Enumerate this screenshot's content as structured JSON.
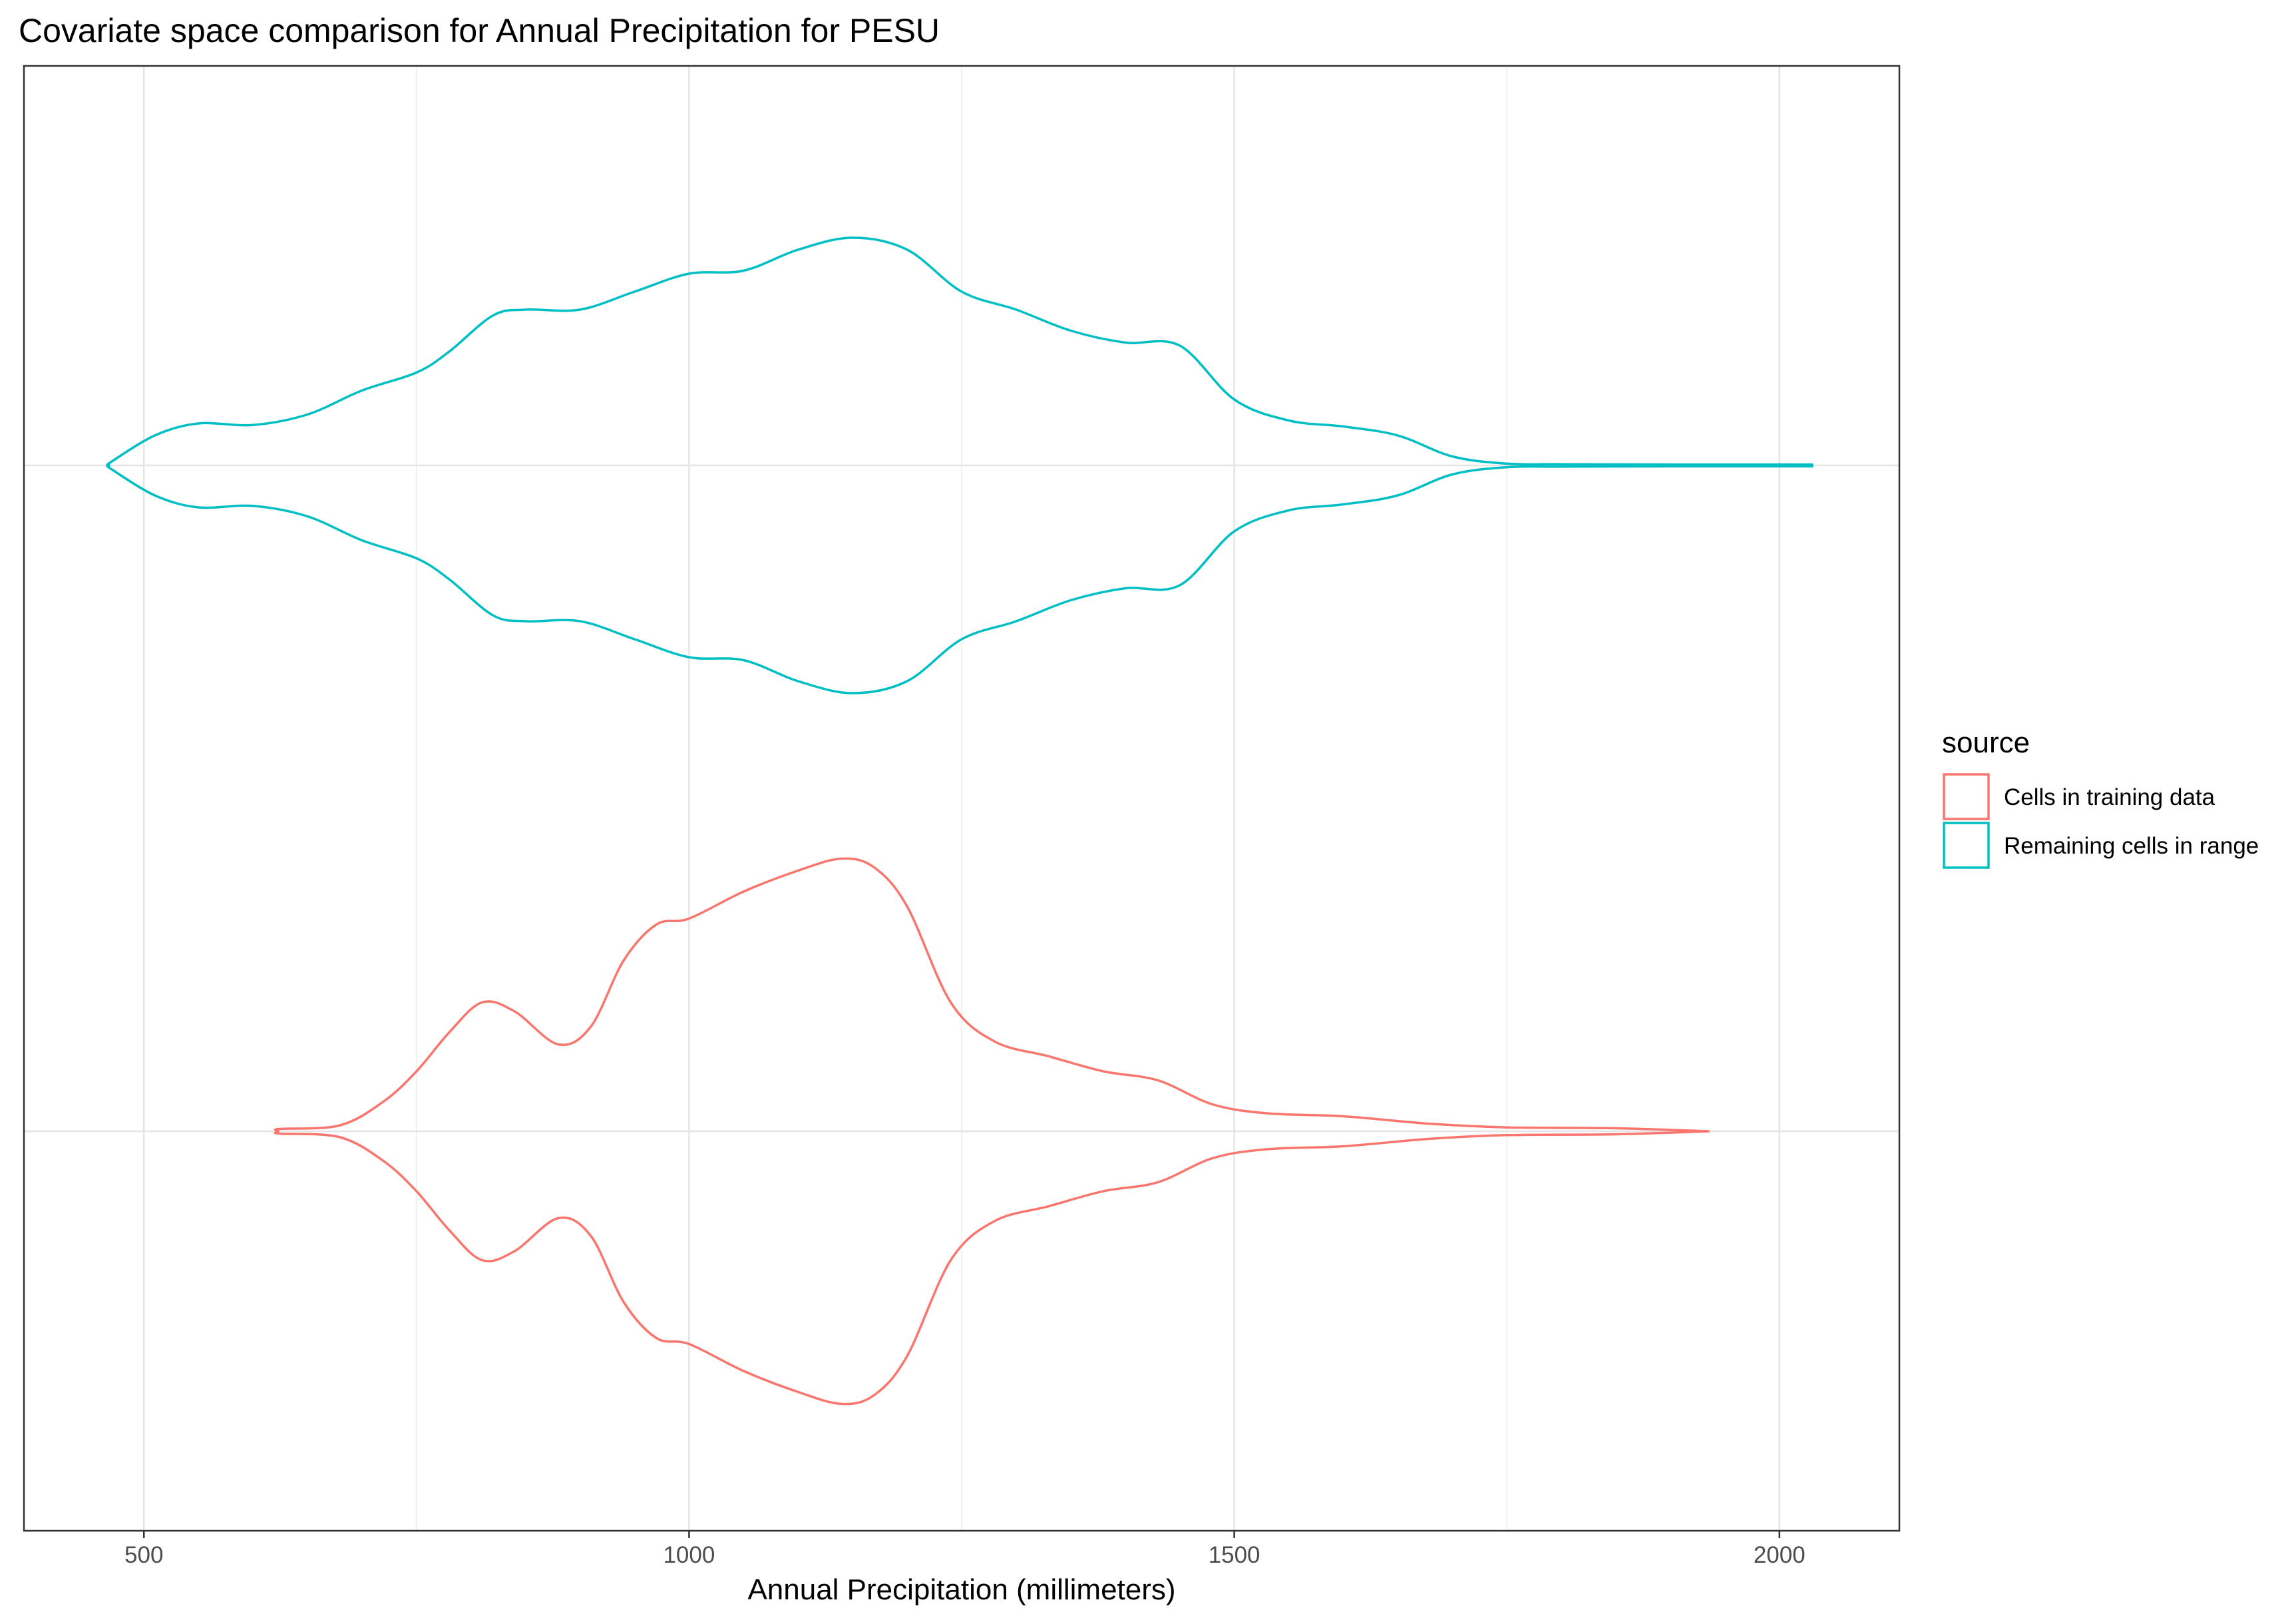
{
  "chart_data": {
    "type": "violin",
    "orientation": "horizontal",
    "title": "Covariate space comparison for Annual Precipitation for PESU",
    "xlabel": "Annual Precipitation (millimeters)",
    "ylabel": "",
    "xlim": [
      390,
      2110
    ],
    "x_ticks": [
      500,
      1000,
      1500,
      2000
    ],
    "x_tick_labels": [
      "500",
      "1000",
      "1500",
      "2000"
    ],
    "grid": true,
    "legend": {
      "title": "source",
      "position": "right",
      "entries": [
        "Cells in training data",
        "Remaining cells in range"
      ]
    },
    "series": [
      {
        "name": "Remaining cells in range",
        "color": "#00BFC4",
        "row": 2,
        "density_profile": [
          [
            468,
            0.003
          ],
          [
            470,
            0.012
          ],
          [
            510,
            0.1
          ],
          [
            550,
            0.14
          ],
          [
            600,
            0.135
          ],
          [
            650,
            0.17
          ],
          [
            700,
            0.25
          ],
          [
            750,
            0.31
          ],
          [
            780,
            0.38
          ],
          [
            820,
            0.5
          ],
          [
            850,
            0.52
          ],
          [
            900,
            0.52
          ],
          [
            950,
            0.58
          ],
          [
            1000,
            0.64
          ],
          [
            1050,
            0.65
          ],
          [
            1100,
            0.72
          ],
          [
            1150,
            0.76
          ],
          [
            1200,
            0.72
          ],
          [
            1250,
            0.58
          ],
          [
            1300,
            0.52
          ],
          [
            1350,
            0.45
          ],
          [
            1400,
            0.41
          ],
          [
            1450,
            0.4
          ],
          [
            1500,
            0.22
          ],
          [
            1550,
            0.15
          ],
          [
            1600,
            0.13
          ],
          [
            1650,
            0.1
          ],
          [
            1700,
            0.03
          ],
          [
            1750,
            0.006
          ],
          [
            1800,
            0.004
          ],
          [
            1900,
            0.003
          ],
          [
            2030,
            0.003
          ]
        ]
      },
      {
        "name": "Cells in training data",
        "color": "#F8766D",
        "row": 1,
        "density_profile": [
          [
            623,
            0.003
          ],
          [
            625,
            0.008
          ],
          [
            680,
            0.02
          ],
          [
            720,
            0.1
          ],
          [
            750,
            0.2
          ],
          [
            780,
            0.33
          ],
          [
            810,
            0.43
          ],
          [
            840,
            0.4
          ],
          [
            880,
            0.29
          ],
          [
            910,
            0.35
          ],
          [
            940,
            0.57
          ],
          [
            970,
            0.69
          ],
          [
            1000,
            0.71
          ],
          [
            1050,
            0.8
          ],
          [
            1100,
            0.87
          ],
          [
            1140,
            0.91
          ],
          [
            1170,
            0.88
          ],
          [
            1200,
            0.75
          ],
          [
            1240,
            0.43
          ],
          [
            1280,
            0.3
          ],
          [
            1330,
            0.25
          ],
          [
            1380,
            0.2
          ],
          [
            1430,
            0.17
          ],
          [
            1480,
            0.09
          ],
          [
            1530,
            0.06
          ],
          [
            1600,
            0.05
          ],
          [
            1680,
            0.025
          ],
          [
            1750,
            0.013
          ],
          [
            1850,
            0.01
          ],
          [
            1935,
            0.0
          ]
        ]
      }
    ]
  }
}
